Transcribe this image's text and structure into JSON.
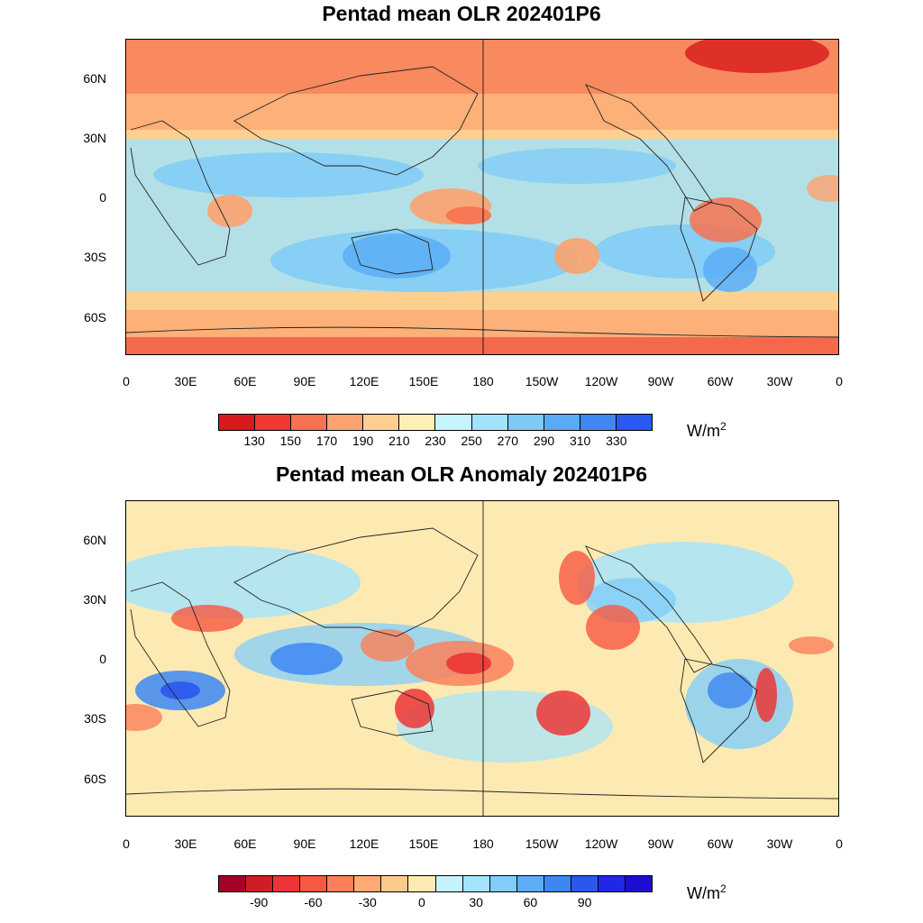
{
  "panels": [
    {
      "title": "Pentad mean OLR 202401P6",
      "x_tick_labels": [
        "0",
        "30E",
        "60E",
        "90E",
        "120E",
        "150E",
        "180",
        "150W",
        "120W",
        "90W",
        "60W",
        "30W",
        "0"
      ],
      "y_tick_labels": [
        "60N",
        "30N",
        "0",
        "30S",
        "60S"
      ],
      "colorbar": {
        "colors": [
          "#d7191c",
          "#ee3a2f",
          "#f7724f",
          "#fca26e",
          "#fdd08f",
          "#fdf0b6",
          "#c5f4fc",
          "#a0e3fb",
          "#7ccaf8",
          "#58abf6",
          "#3f88f3",
          "#2859f0"
        ],
        "labels": [
          "130",
          "150",
          "170",
          "190",
          "210",
          "230",
          "250",
          "270",
          "290",
          "310",
          "330"
        ]
      },
      "units": {
        "base": "W/m",
        "exp": "2"
      }
    },
    {
      "title": "Pentad mean OLR Anomaly 202401P6",
      "x_tick_labels": [
        "0",
        "30E",
        "60E",
        "90E",
        "120E",
        "150E",
        "180",
        "150W",
        "120W",
        "90W",
        "60W",
        "30W",
        "0"
      ],
      "y_tick_labels": [
        "60N",
        "30N",
        "0",
        "30S",
        "60S"
      ],
      "colorbar": {
        "colors": [
          "#a50026",
          "#d01c29",
          "#ec3536",
          "#f75840",
          "#fb8059",
          "#fdaa74",
          "#fdca8e",
          "#fdeab3",
          "#c4f3fd",
          "#a3e4fc",
          "#82cdf8",
          "#5cadf6",
          "#3d87f3",
          "#2a58ef",
          "#1f28e6",
          "#1f0ed1"
        ],
        "labels": [
          "-90",
          "-60",
          "-30",
          "0",
          "30",
          "60",
          "90"
        ]
      },
      "units": {
        "base": "W/m",
        "exp": "2"
      }
    }
  ]
}
